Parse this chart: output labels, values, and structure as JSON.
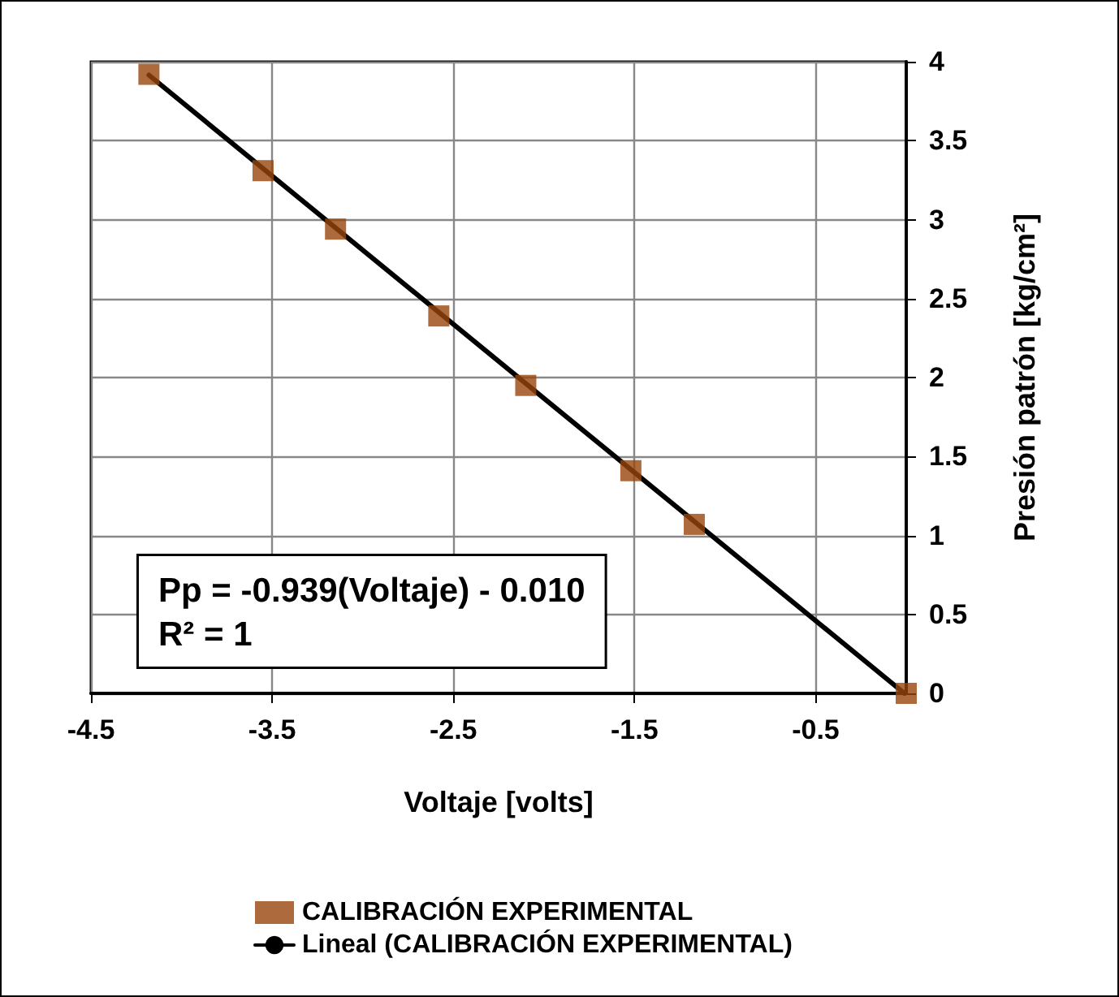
{
  "chart_data": {
    "type": "scatter",
    "xlabel": "Voltaje [volts]",
    "ylabel": "Presión patrón [kg/cm²]",
    "xlim": [
      -4.5,
      0
    ],
    "xticks": [
      -4.5,
      -3.5,
      -2.5,
      -1.5,
      -0.5
    ],
    "ylim": [
      0,
      4
    ],
    "yticks": [
      0,
      0.5,
      1,
      1.5,
      2,
      2.5,
      3,
      3.5,
      4
    ],
    "grid": true,
    "legend": "bottom",
    "marker": "square",
    "annotations": [
      "Pp = -0.939(Voltaje) - 0.010\nR² = 1"
    ],
    "series": [
      {
        "name": "CALIBRACIÓN EXPERIMENTAL",
        "color": "#99460d",
        "x": [
          -4.18,
          -3.55,
          -3.15,
          -2.58,
          -2.1,
          -1.52,
          -1.17,
          0
        ],
        "values": [
          3.92,
          3.31,
          2.94,
          2.39,
          1.95,
          1.41,
          1.07,
          0
        ]
      },
      {
        "name": "Lineal (CALIBRACIÓN EXPERIMENTAL)",
        "type": "line",
        "color": "#000000",
        "line_style": "solid",
        "marker": "none",
        "x": [
          -4.18,
          -0.01
        ],
        "values": [
          3.915,
          0
        ]
      }
    ]
  }
}
